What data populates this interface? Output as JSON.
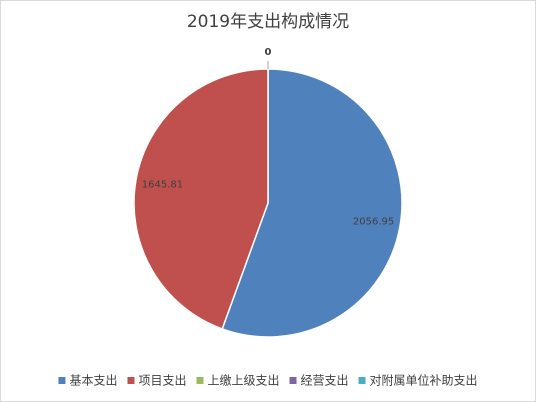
{
  "chart_data": {
    "type": "pie",
    "title": "2019年支出构成情况",
    "categories": [
      "基本支出",
      "项目支出",
      "上缴上级支出",
      "经营支出",
      "对附属单位补助支出"
    ],
    "values": [
      2056.95,
      1645.81,
      0,
      null,
      null
    ],
    "colors": [
      "#4f81bd",
      "#c0504d",
      "#9bbb59",
      "#8064a2",
      "#4bacc6"
    ],
    "legend": "bottom"
  }
}
